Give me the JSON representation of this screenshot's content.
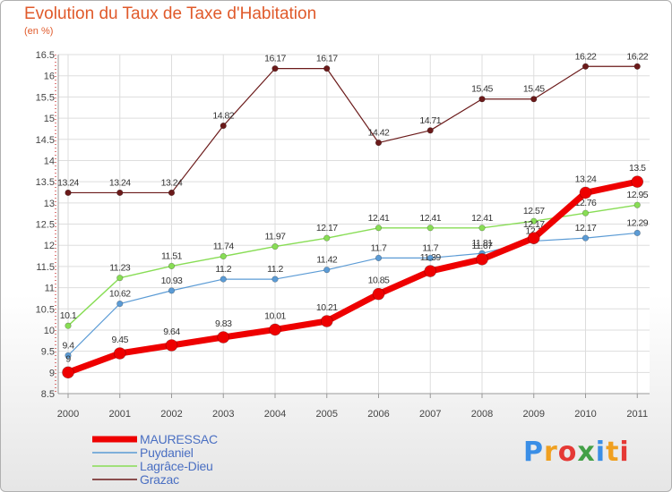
{
  "header": {
    "title": "Evolution du Taux de Taxe d'Habitation",
    "unit": "(en %)"
  },
  "chart_data": {
    "type": "line",
    "title": "Evolution du Taux de Taxe d'Habitation",
    "ylabel": "(en %)",
    "xlabel": "",
    "x": [
      "2000",
      "2001",
      "2002",
      "2003",
      "2004",
      "2005",
      "2006",
      "2007",
      "2008",
      "2009",
      "2010",
      "2011"
    ],
    "ylim": [
      8.5,
      16.5
    ],
    "yticks": [
      "8.5",
      "9",
      "9.5",
      "10",
      "10.5",
      "11",
      "11.5",
      "12",
      "12.5",
      "13",
      "13.5",
      "14",
      "14.5",
      "15",
      "15.5",
      "16",
      "16.5"
    ],
    "grid": true,
    "legend_position": "bottom-left",
    "series": [
      {
        "name": "Grazac",
        "color": "#6b1a1a",
        "values": [
          13.24,
          13.24,
          13.24,
          14.82,
          16.17,
          16.17,
          14.42,
          14.71,
          15.45,
          15.45,
          16.22,
          16.22
        ],
        "labels": [
          "13.24",
          "13.24",
          "13.24",
          "14.82",
          "16.17",
          "16.17",
          "14.42",
          "14.71",
          "15.45",
          "15.45",
          "16.22",
          "16.22"
        ]
      },
      {
        "name": "Lagrâce-Dieu",
        "color": "#88dd55",
        "values": [
          10.1,
          11.23,
          11.51,
          11.74,
          11.97,
          12.17,
          12.41,
          12.41,
          12.41,
          12.57,
          12.76,
          12.95
        ],
        "labels": [
          "10.1",
          "11.23",
          "11.51",
          "11.74",
          "11.97",
          "12.17",
          "12.41",
          "12.41",
          "12.41",
          "12.57",
          "12.76",
          "12.95"
        ]
      },
      {
        "name": "Puydaniel",
        "color": "#5b9bd5",
        "values": [
          9.4,
          10.62,
          10.93,
          11.2,
          11.2,
          11.42,
          11.7,
          11.7,
          11.81,
          12.1,
          12.17,
          12.29
        ],
        "labels": [
          "9.4",
          "10.62",
          "10.93",
          "11.2",
          "11.2",
          "11.42",
          "11.7",
          "11.7",
          "11.81",
          "12.1",
          "12.17",
          "12.29"
        ]
      },
      {
        "name": "MAURESSAC",
        "color": "#ee0000",
        "values": [
          9.0,
          9.45,
          9.64,
          9.83,
          10.01,
          10.21,
          10.85,
          11.39,
          11.67,
          12.17,
          13.24,
          13.5
        ],
        "labels": [
          "9",
          "9.45",
          "9.64",
          "9.83",
          "10.01",
          "10.21",
          "10.85",
          "11.39",
          "11.67",
          "12.17",
          "13.24",
          "13.5"
        ]
      }
    ]
  },
  "legend": {
    "items": [
      {
        "label": "MAURESSAC",
        "color": "#ee0000"
      },
      {
        "label": "Puydaniel",
        "color": "#5b9bd5"
      },
      {
        "label": "Lagrâce-Dieu",
        "color": "#88dd55"
      },
      {
        "label": "Grazac",
        "color": "#6b1a1a"
      }
    ]
  },
  "logo": {
    "text": "Proxiti",
    "letters": [
      "P",
      "r",
      "o",
      "x",
      "i",
      "t",
      "i"
    ],
    "colors": [
      "#3a8ee6",
      "#f0a020",
      "#e53935",
      "#43a047",
      "#3a8ee6",
      "#f0a020",
      "#e53935"
    ]
  }
}
